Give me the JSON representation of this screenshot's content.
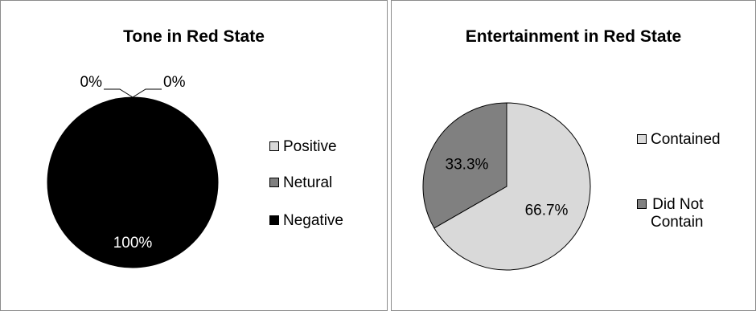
{
  "chart_data": [
    {
      "type": "pie",
      "title": "Tone in Red State",
      "categories": [
        "Positive",
        "Netural",
        "Negative"
      ],
      "values": [
        0,
        0,
        100
      ],
      "data_labels": [
        "0%",
        "0%",
        "100%"
      ],
      "colors": [
        "#d9d9d9",
        "#808080",
        "#000000"
      ],
      "legend": "right"
    },
    {
      "type": "pie",
      "title": "Entertainment in Red State",
      "categories": [
        "Contained",
        "Did Not Contain"
      ],
      "values": [
        66.7,
        33.3
      ],
      "data_labels": [
        "66.7%",
        "33.3%"
      ],
      "colors": [
        "#d9d9d9",
        "#808080"
      ],
      "legend": "right"
    }
  ]
}
